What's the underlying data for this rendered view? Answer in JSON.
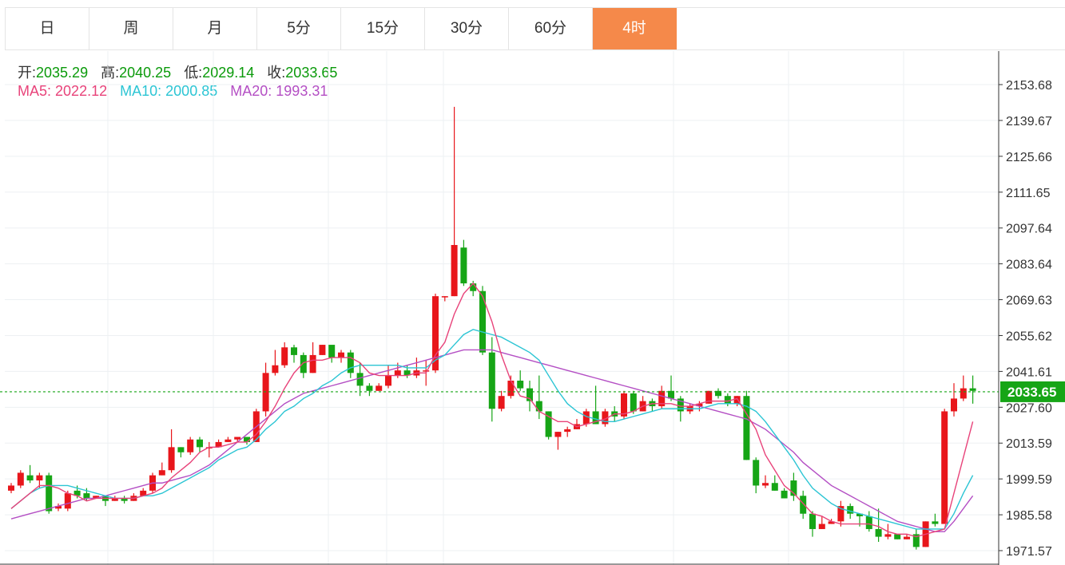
{
  "tabs": [
    {
      "label": "日",
      "active": false
    },
    {
      "label": "周",
      "active": false
    },
    {
      "label": "月",
      "active": false
    },
    {
      "label": "5分",
      "active": false
    },
    {
      "label": "15分",
      "active": false
    },
    {
      "label": "30分",
      "active": false
    },
    {
      "label": "60分",
      "active": false
    },
    {
      "label": "4时",
      "active": true
    }
  ],
  "ohlc_info": {
    "open_label": "开:",
    "open": "2035.29",
    "high_label": "高:",
    "high": "2040.25",
    "low_label": "低:",
    "low": "2029.14",
    "close_label": "收:",
    "close": "2033.65"
  },
  "ma_info": {
    "ma5_label": "MA5:",
    "ma5": "2022.12",
    "ma10_label": "MA10:",
    "ma10": "2000.85",
    "ma20_label": "MA20:",
    "ma20": "1993.31"
  },
  "colors": {
    "up": "#e8161b",
    "down": "#16a516",
    "ma5": "#e8437a",
    "ma10": "#2cc5d4",
    "ma20": "#b44fc4",
    "price_line": "#16a516",
    "active_tab": "#f5894a"
  },
  "chart_data": {
    "type": "candlestick",
    "ylim": [
      1967.0,
      2158.0
    ],
    "y_ticks": [
      "2153.68",
      "2139.67",
      "2125.66",
      "2111.65",
      "2097.64",
      "2083.64",
      "2069.63",
      "2055.62",
      "2041.61",
      "2027.60",
      "2013.59",
      "1999.59",
      "1985.58",
      "1971.57"
    ],
    "last_price": "2033.65",
    "candles": [
      [
        1995,
        1997,
        1994,
        1998
      ],
      [
        1997,
        2002,
        1996,
        2003
      ],
      [
        2001,
        1999,
        1998,
        2005
      ],
      [
        1999,
        2001,
        1996,
        2002
      ],
      [
        2001,
        1987,
        1986,
        2002
      ],
      [
        1988,
        1989,
        1987,
        1990
      ],
      [
        1988,
        1994,
        1987,
        1995
      ],
      [
        1995,
        1993,
        1992,
        1997
      ],
      [
        1994,
        1992,
        1991,
        1996
      ],
      [
        1992,
        1993,
        1992,
        1993
      ],
      [
        1993,
        1991,
        1989,
        1993
      ],
      [
        1991,
        1992,
        1991,
        1993
      ],
      [
        1992,
        1991,
        1990,
        1993
      ],
      [
        1991,
        1993,
        1991,
        1994
      ],
      [
        1993,
        1995,
        1993,
        1996
      ],
      [
        1995,
        2001,
        1994,
        2002
      ],
      [
        2001,
        2003,
        2001,
        2006
      ],
      [
        2003,
        2012,
        2002,
        2019
      ],
      [
        2012,
        2010,
        2008,
        2012
      ],
      [
        2010,
        2015,
        2009,
        2016
      ],
      [
        2015,
        2012,
        2010,
        2016
      ],
      [
        2012,
        2012,
        2008,
        2014
      ],
      [
        2012,
        2014,
        2012,
        2015
      ],
      [
        2014,
        2015,
        2014,
        2016
      ],
      [
        2015,
        2016,
        2014,
        2016
      ],
      [
        2016,
        2014,
        2013,
        2016
      ],
      [
        2014,
        2026,
        2014,
        2027
      ],
      [
        2026,
        2041,
        2024,
        2045
      ],
      [
        2041,
        2044,
        2040,
        2050
      ],
      [
        2044,
        2051,
        2043,
        2053
      ],
      [
        2051,
        2048,
        2045,
        2052
      ],
      [
        2048,
        2041,
        2039,
        2049
      ],
      [
        2041,
        2048,
        2041,
        2053
      ],
      [
        2048,
        2052,
        2048,
        2052
      ],
      [
        2052,
        2047,
        2045,
        2051
      ],
      [
        2047,
        2049,
        2045,
        2050
      ],
      [
        2049,
        2041,
        2039,
        2050
      ],
      [
        2041,
        2036,
        2032,
        2045
      ],
      [
        2036,
        2034,
        2032,
        2037
      ],
      [
        2034,
        2036,
        2034,
        2037
      ],
      [
        2036,
        2040,
        2035,
        2044
      ],
      [
        2040,
        2042,
        2039,
        2045
      ],
      [
        2042,
        2040,
        2039,
        2044
      ],
      [
        2040,
        2042,
        2039,
        2047
      ],
      [
        2042,
        2042,
        2036,
        2046
      ],
      [
        2042,
        2071,
        2041,
        2072
      ],
      [
        2071,
        2071,
        2069,
        2071
      ],
      [
        2071,
        2091,
        2071,
        2145
      ],
      [
        2090,
        2076,
        2075,
        2093
      ],
      [
        2076,
        2073,
        2071,
        2077
      ],
      [
        2073,
        2049,
        2048,
        2075
      ],
      [
        2049,
        2027,
        2022,
        2055
      ],
      [
        2027,
        2032,
        2026,
        2034
      ],
      [
        2032,
        2038,
        2031,
        2040
      ],
      [
        2038,
        2035,
        2034,
        2042
      ],
      [
        2035,
        2030,
        2026,
        2038
      ],
      [
        2030,
        2026,
        2023,
        2040
      ],
      [
        2026,
        2016,
        2015,
        2026
      ],
      [
        2016,
        2018,
        2011,
        2018
      ],
      [
        2018,
        2019,
        2016,
        2020
      ],
      [
        2019,
        2021,
        2019,
        2023
      ],
      [
        2021,
        2026,
        2020,
        2027
      ],
      [
        2026,
        2021,
        2021,
        2036
      ],
      [
        2021,
        2026,
        2020,
        2027
      ],
      [
        2026,
        2024,
        2022,
        2028
      ],
      [
        2024,
        2033,
        2023,
        2034
      ],
      [
        2033,
        2026,
        2025,
        2034
      ],
      [
        2026,
        2030,
        2026,
        2032
      ],
      [
        2030,
        2028,
        2026,
        2031
      ],
      [
        2028,
        2034,
        2027,
        2036
      ],
      [
        2034,
        2031,
        2030,
        2040
      ],
      [
        2031,
        2026,
        2022,
        2032
      ],
      [
        2026,
        2028,
        2025,
        2029
      ],
      [
        2028,
        2029,
        2026,
        2030
      ],
      [
        2029,
        2034,
        2029,
        2034
      ],
      [
        2034,
        2032,
        2031,
        2035
      ],
      [
        2032,
        2029,
        2028,
        2033
      ],
      [
        2029,
        2032,
        2028,
        2032
      ],
      [
        2032,
        2007,
        2007,
        2034
      ],
      [
        2007,
        1997,
        1994,
        2008
      ],
      [
        1997,
        1998,
        1996,
        2001
      ],
      [
        1998,
        1995,
        1995,
        2001
      ],
      [
        1995,
        1992,
        1992,
        1996
      ],
      [
        1999,
        1993,
        1991,
        2002
      ],
      [
        1993,
        1986,
        1984,
        1995
      ],
      [
        1986,
        1980,
        1977,
        1987
      ],
      [
        1980,
        1982,
        1980,
        1985
      ],
      [
        1982,
        1983,
        1982,
        1984
      ],
      [
        1983,
        1989,
        1981,
        1991
      ],
      [
        1989,
        1986,
        1984,
        1990
      ],
      [
        1986,
        1985,
        1981,
        1986
      ],
      [
        1985,
        1980,
        1979,
        1987
      ],
      [
        1980,
        1977,
        1975,
        1988
      ],
      [
        1977,
        1978,
        1976,
        1982
      ],
      [
        1978,
        1976,
        1976,
        1977
      ],
      [
        1976,
        1977,
        1976,
        1978
      ],
      [
        1978,
        1973,
        1972,
        1980
      ],
      [
        1973,
        1983,
        1973,
        1983
      ],
      [
        1983,
        1982,
        1981,
        1986
      ],
      [
        1982,
        2026,
        1982,
        2027
      ],
      [
        2026,
        2031,
        2024,
        2037
      ],
      [
        2031,
        2035,
        2030,
        2040
      ],
      [
        2035,
        2034,
        2029,
        2040
      ]
    ],
    "ma5": [
      1988,
      1991,
      1994,
      1997,
      1997,
      1996,
      1994,
      1993,
      1991,
      1992,
      1992,
      1992,
      1992,
      1992,
      1993,
      1994,
      1996,
      2000,
      2003,
      2006,
      2010,
      2012,
      2012,
      2013,
      2014,
      2014,
      2017,
      2022,
      2028,
      2035,
      2041,
      2045,
      2046,
      2046,
      2047,
      2047,
      2047,
      2045,
      2041,
      2040,
      2040,
      2040,
      2040,
      2041,
      2041,
      2048,
      2053,
      2064,
      2072,
      2076,
      2071,
      2061,
      2048,
      2038,
      2032,
      2031,
      2026,
      2024,
      2022,
      2022,
      2020,
      2021,
      2022,
      2023,
      2025,
      2025,
      2026,
      2028,
      2029,
      2029,
      2029,
      2028,
      2028,
      2029,
      2030,
      2030,
      2030,
      2031,
      2025,
      2019,
      2009,
      2003,
      1997,
      1994,
      1990,
      1986,
      1985,
      1983,
      1982,
      1982,
      1982,
      1982,
      1981,
      1979,
      1978,
      1978,
      1977,
      1978,
      1979,
      1980,
      1994,
      2008,
      2022
    ],
    "ma10": [
      1988,
      1991,
      1994,
      1996,
      1997,
      1997,
      1997,
      1996,
      1995,
      1994,
      1993,
      1992,
      1992,
      1992,
      1993,
      1993,
      1994,
      1996,
      1998,
      2000,
      2002,
      2004,
      2007,
      2009,
      2011,
      2012,
      2015,
      2019,
      2022,
      2026,
      2028,
      2031,
      2033,
      2036,
      2038,
      2041,
      2043,
      2044,
      2044,
      2044,
      2044,
      2044,
      2043,
      2043,
      2043,
      2046,
      2048,
      2052,
      2056,
      2058,
      2057,
      2056,
      2055,
      2053,
      2051,
      2049,
      2046,
      2040,
      2034,
      2029,
      2026,
      2024,
      2023,
      2022,
      2022,
      2023,
      2024,
      2025,
      2026,
      2027,
      2027,
      2027,
      2027,
      2027,
      2028,
      2029,
      2029,
      2029,
      2028,
      2026,
      2022,
      2017,
      2012,
      2007,
      2001,
      1996,
      1993,
      1990,
      1988,
      1987,
      1986,
      1985,
      1984,
      1983,
      1982,
      1981,
      1980,
      1980,
      1980,
      1980,
      1986,
      1994,
      2001
    ],
    "ma20": [
      1984,
      1985,
      1986,
      1987,
      1988,
      1989,
      1990,
      1991,
      1992,
      1992,
      1993,
      1994,
      1995,
      1996,
      1997,
      1998,
      1998,
      1999,
      2000,
      2001,
      2003,
      2005,
      2008,
      2011,
      2014,
      2017,
      2020,
      2023,
      2026,
      2029,
      2031,
      2033,
      2034,
      2035,
      2036,
      2037,
      2038,
      2039,
      2040,
      2041,
      2042,
      2043,
      2044,
      2045,
      2046,
      2047,
      2048,
      2049,
      2050,
      2050,
      2050,
      2050,
      2049,
      2048,
      2047,
      2046,
      2045,
      2044,
      2043,
      2042,
      2041,
      2040,
      2039,
      2038,
      2037,
      2036,
      2035,
      2034,
      2033,
      2032,
      2031,
      2030,
      2029,
      2028,
      2027,
      2026,
      2025,
      2024,
      2023,
      2021,
      2019,
      2016,
      2013,
      2010,
      2006,
      2003,
      2000,
      1997,
      1995,
      1993,
      1991,
      1989,
      1987,
      1985,
      1983,
      1982,
      1981,
      1980,
      1979,
      1979,
      1983,
      1988,
      1993
    ]
  }
}
